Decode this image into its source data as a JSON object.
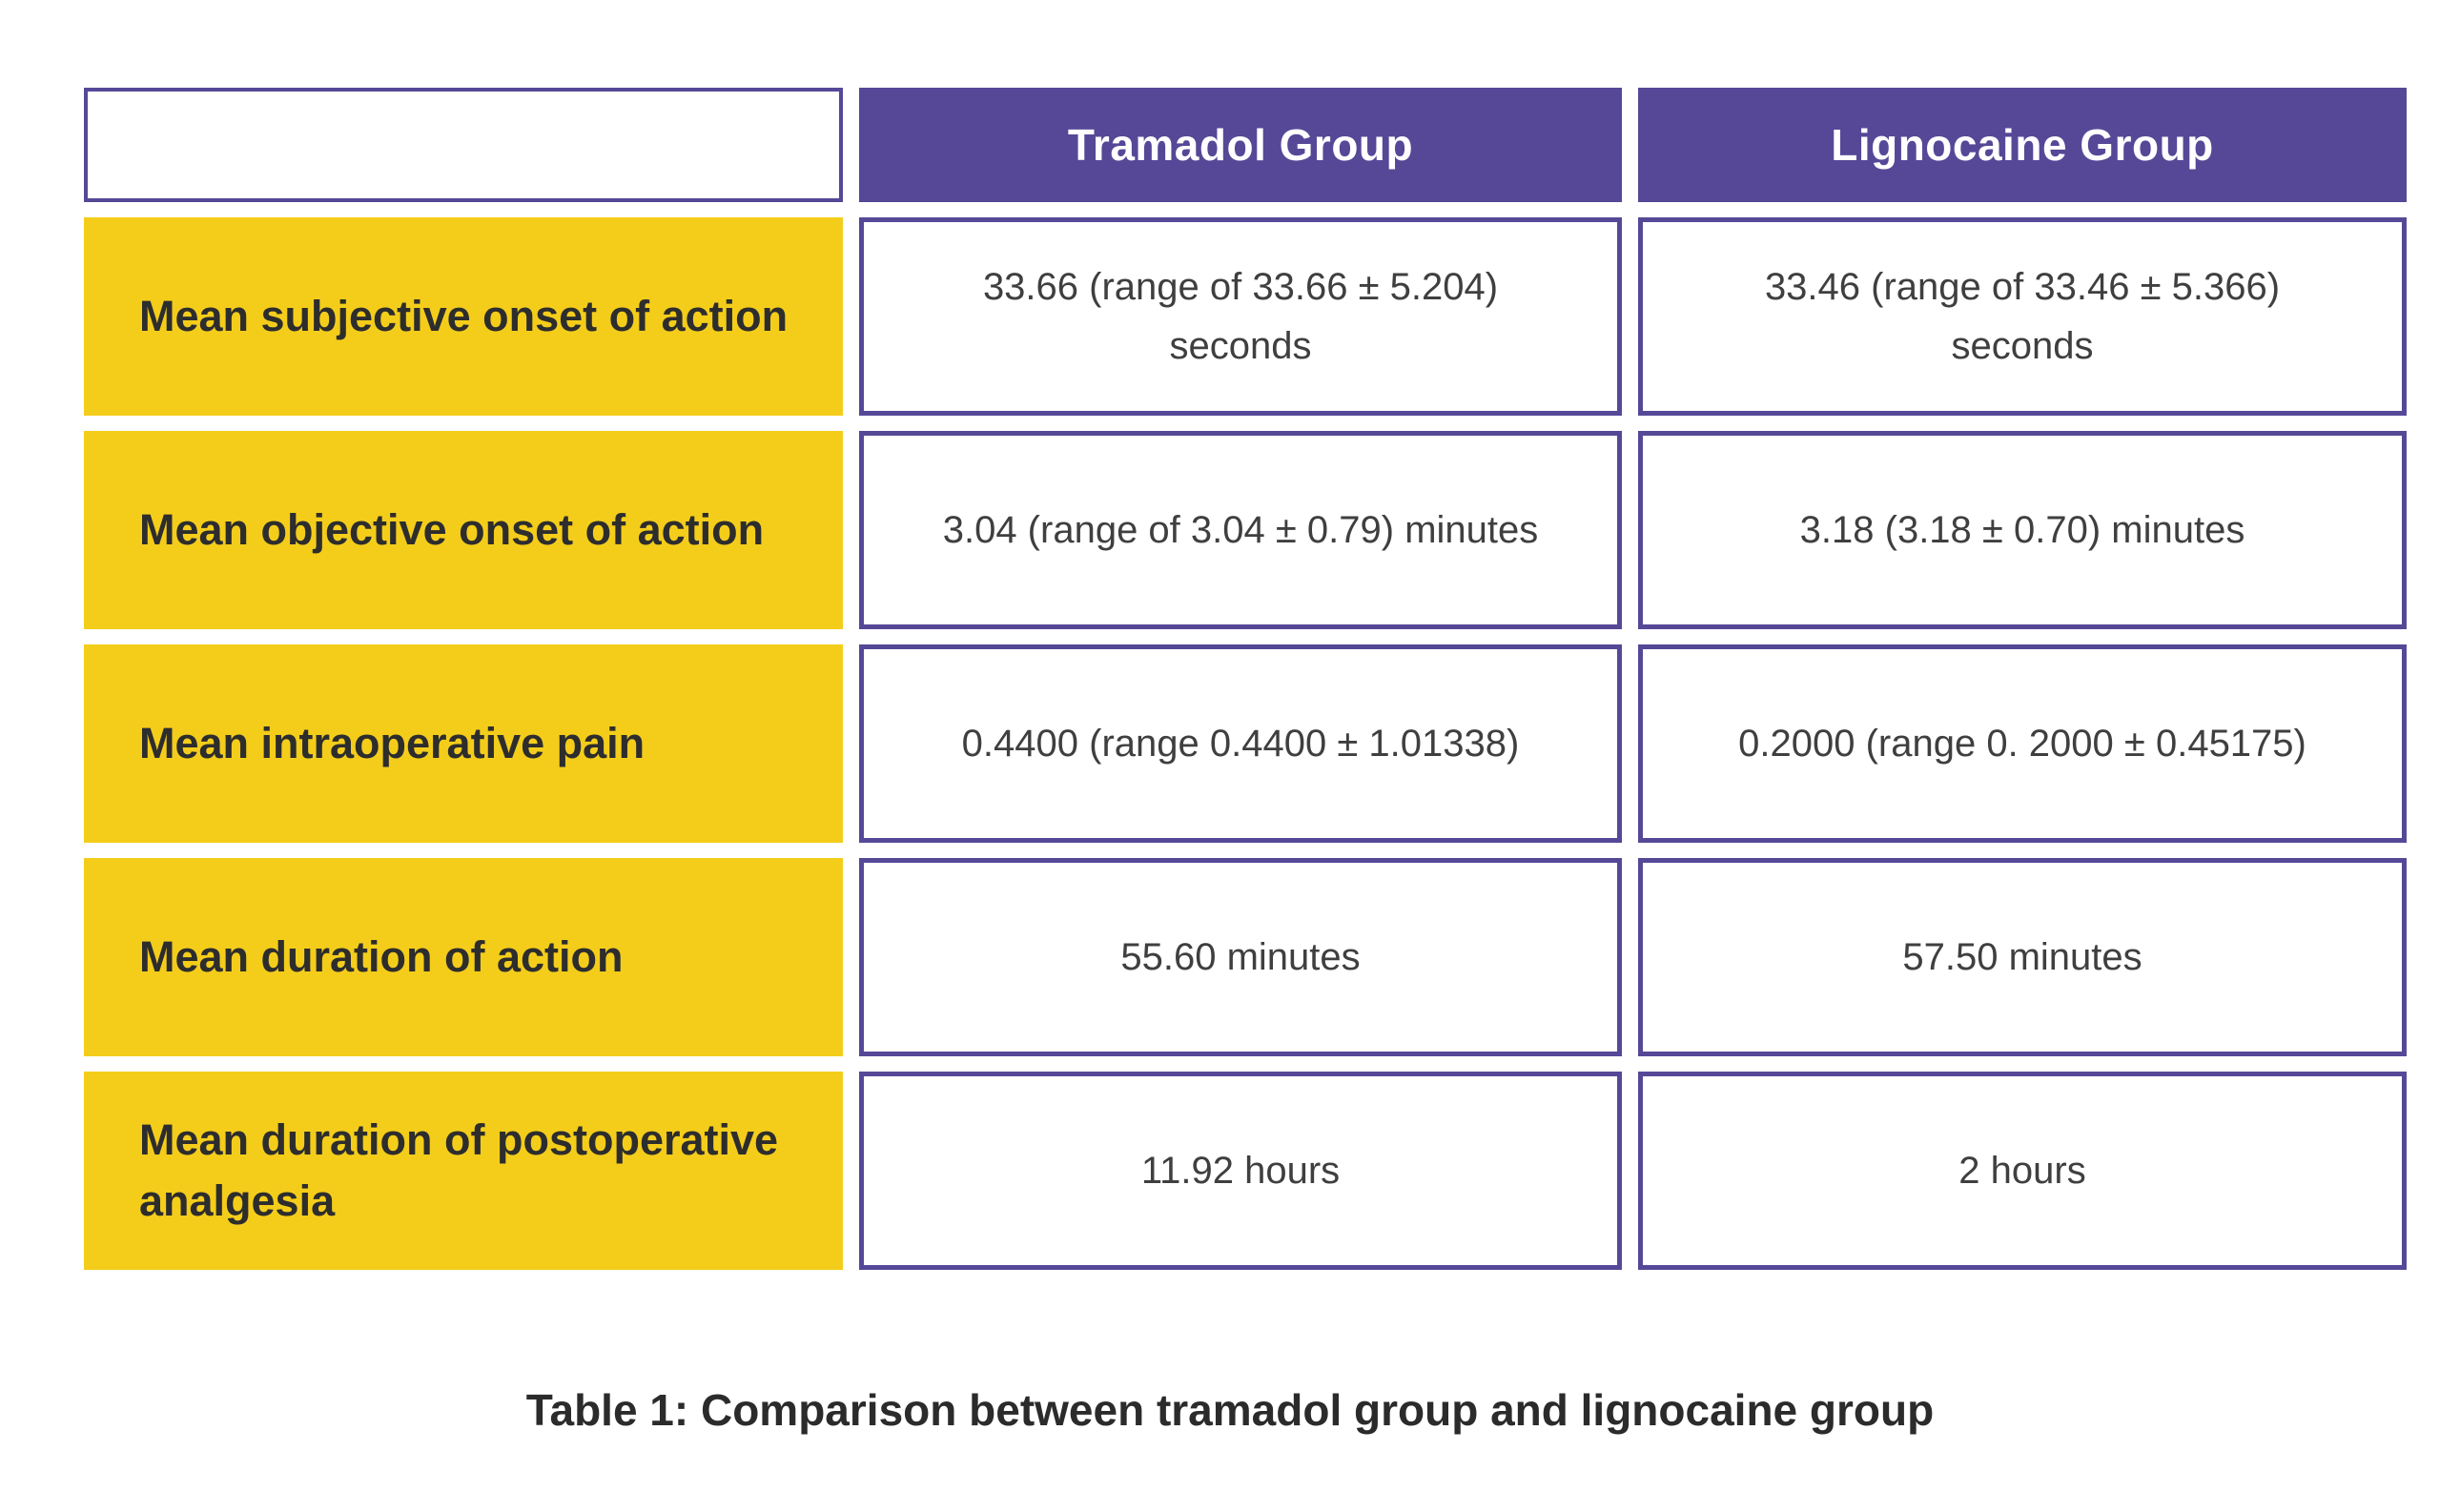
{
  "table": {
    "header": {
      "corner": "",
      "col1": "Tramadol Group",
      "col2": "Lignocaine Group"
    },
    "rows": [
      {
        "label": "Mean subjective onset of action",
        "tramadol": "33.66 (range of 33.66 ± 5.204) seconds",
        "lignocaine": "33.46 (range of 33.46 ± 5.366) seconds"
      },
      {
        "label": "Mean objective onset of action",
        "tramadol": "3.04 (range of 3.04 ± 0.79) minutes",
        "lignocaine": "3.18 (3.18 ± 0.70) minutes"
      },
      {
        "label": "Mean intraoperative pain",
        "tramadol": "0.4400 (range 0.4400 ± 1.01338)",
        "lignocaine": "0.2000 (range 0. 2000 ± 0.45175)"
      },
      {
        "label": "Mean duration of action",
        "tramadol": "55.60 minutes",
        "lignocaine": "57.50 minutes"
      },
      {
        "label": "Mean duration of postoperative analgesia",
        "tramadol": "11.92 hours",
        "lignocaine": "2 hours"
      }
    ],
    "colors": {
      "header_bg": "#564897",
      "header_text": "#ffffff",
      "label_bg": "#f4cd1b",
      "label_text": "#2d2d2d",
      "value_text": "#3f3f3f",
      "cell_border": "#564897",
      "page_bg": "#ffffff"
    }
  },
  "caption": "Table 1: Comparison between tramadol group and lignocaine group",
  "chart_data": {
    "type": "table",
    "title": "Table 1: Comparison between tramadol group and lignocaine group",
    "columns": [
      "",
      "Tramadol Group",
      "Lignocaine Group"
    ],
    "rows": [
      [
        "Mean subjective onset of action",
        "33.66 (range of 33.66 ± 5.204) seconds",
        "33.46 (range of 33.46 ± 5.366) seconds"
      ],
      [
        "Mean objective onset of action",
        "3.04 (range of 3.04 ± 0.79) minutes",
        "3.18 (3.18 ± 0.70) minutes"
      ],
      [
        "Mean intraoperative pain",
        "0.4400 (range 0.4400 ± 1.01338)",
        "0.2000 (range 0. 2000 ± 0.45175)"
      ],
      [
        "Mean duration of action",
        "55.60 minutes",
        "57.50 minutes"
      ],
      [
        "Mean duration of postoperative analgesia",
        "11.92 hours",
        "2 hours"
      ]
    ]
  }
}
